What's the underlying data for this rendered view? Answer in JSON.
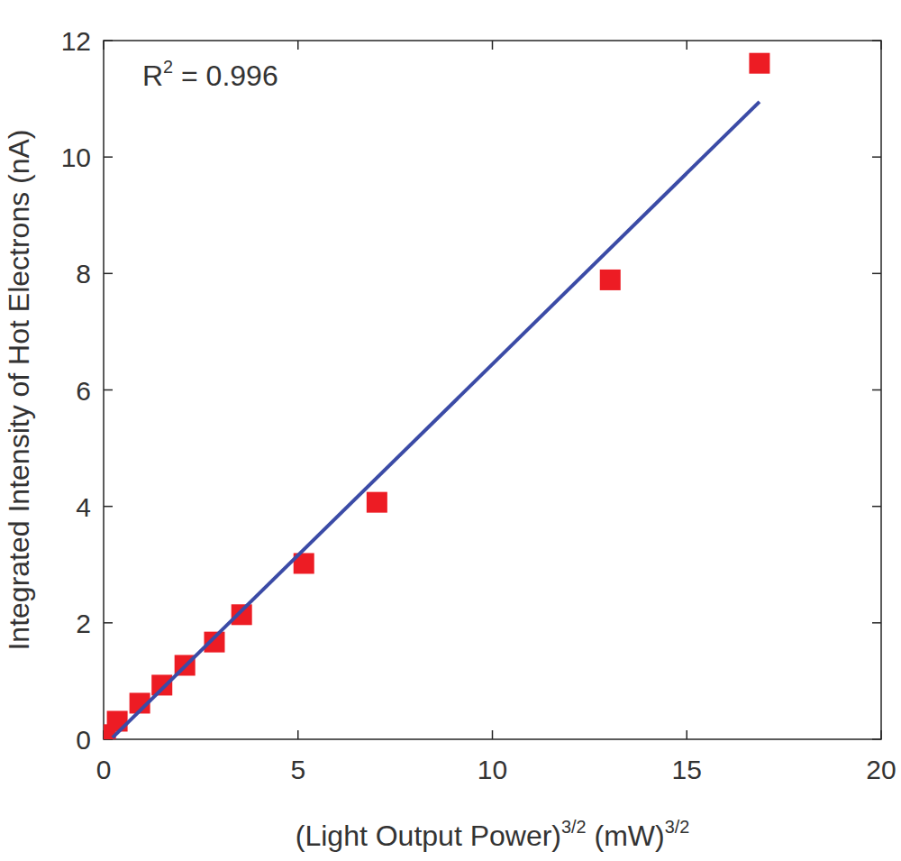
{
  "chart_data": {
    "type": "scatter",
    "x_label": [
      "(Light Output Power)",
      "3/2",
      " (mW)",
      "3/2"
    ],
    "y_label": "Integrated Intensity of Hot Electrons (nA)",
    "annotation": [
      "R",
      "2",
      " = 0.996"
    ],
    "xlim": [
      0,
      20
    ],
    "xticks": [
      0,
      5,
      10,
      15,
      20
    ],
    "ylim": [
      0,
      12
    ],
    "yticks": [
      0,
      2,
      4,
      6,
      8,
      10,
      12
    ],
    "series": [
      {
        "type": "scatter",
        "marker": "square",
        "color": "#ed1c24",
        "x": [
          0.05,
          0.35,
          0.93,
          1.5,
          2.09,
          2.85,
          3.55,
          5.15,
          7.03,
          13.03,
          16.87
        ],
        "values": [
          0.08,
          0.31,
          0.62,
          0.93,
          1.27,
          1.67,
          2.14,
          3.02,
          4.07,
          7.89,
          11.61
        ]
      },
      {
        "type": "line",
        "line_style": "solid",
        "color": "#3b4ba6",
        "x": [
          0.23,
          16.87
        ],
        "values": [
          0.03,
          10.95
        ]
      }
    ]
  }
}
